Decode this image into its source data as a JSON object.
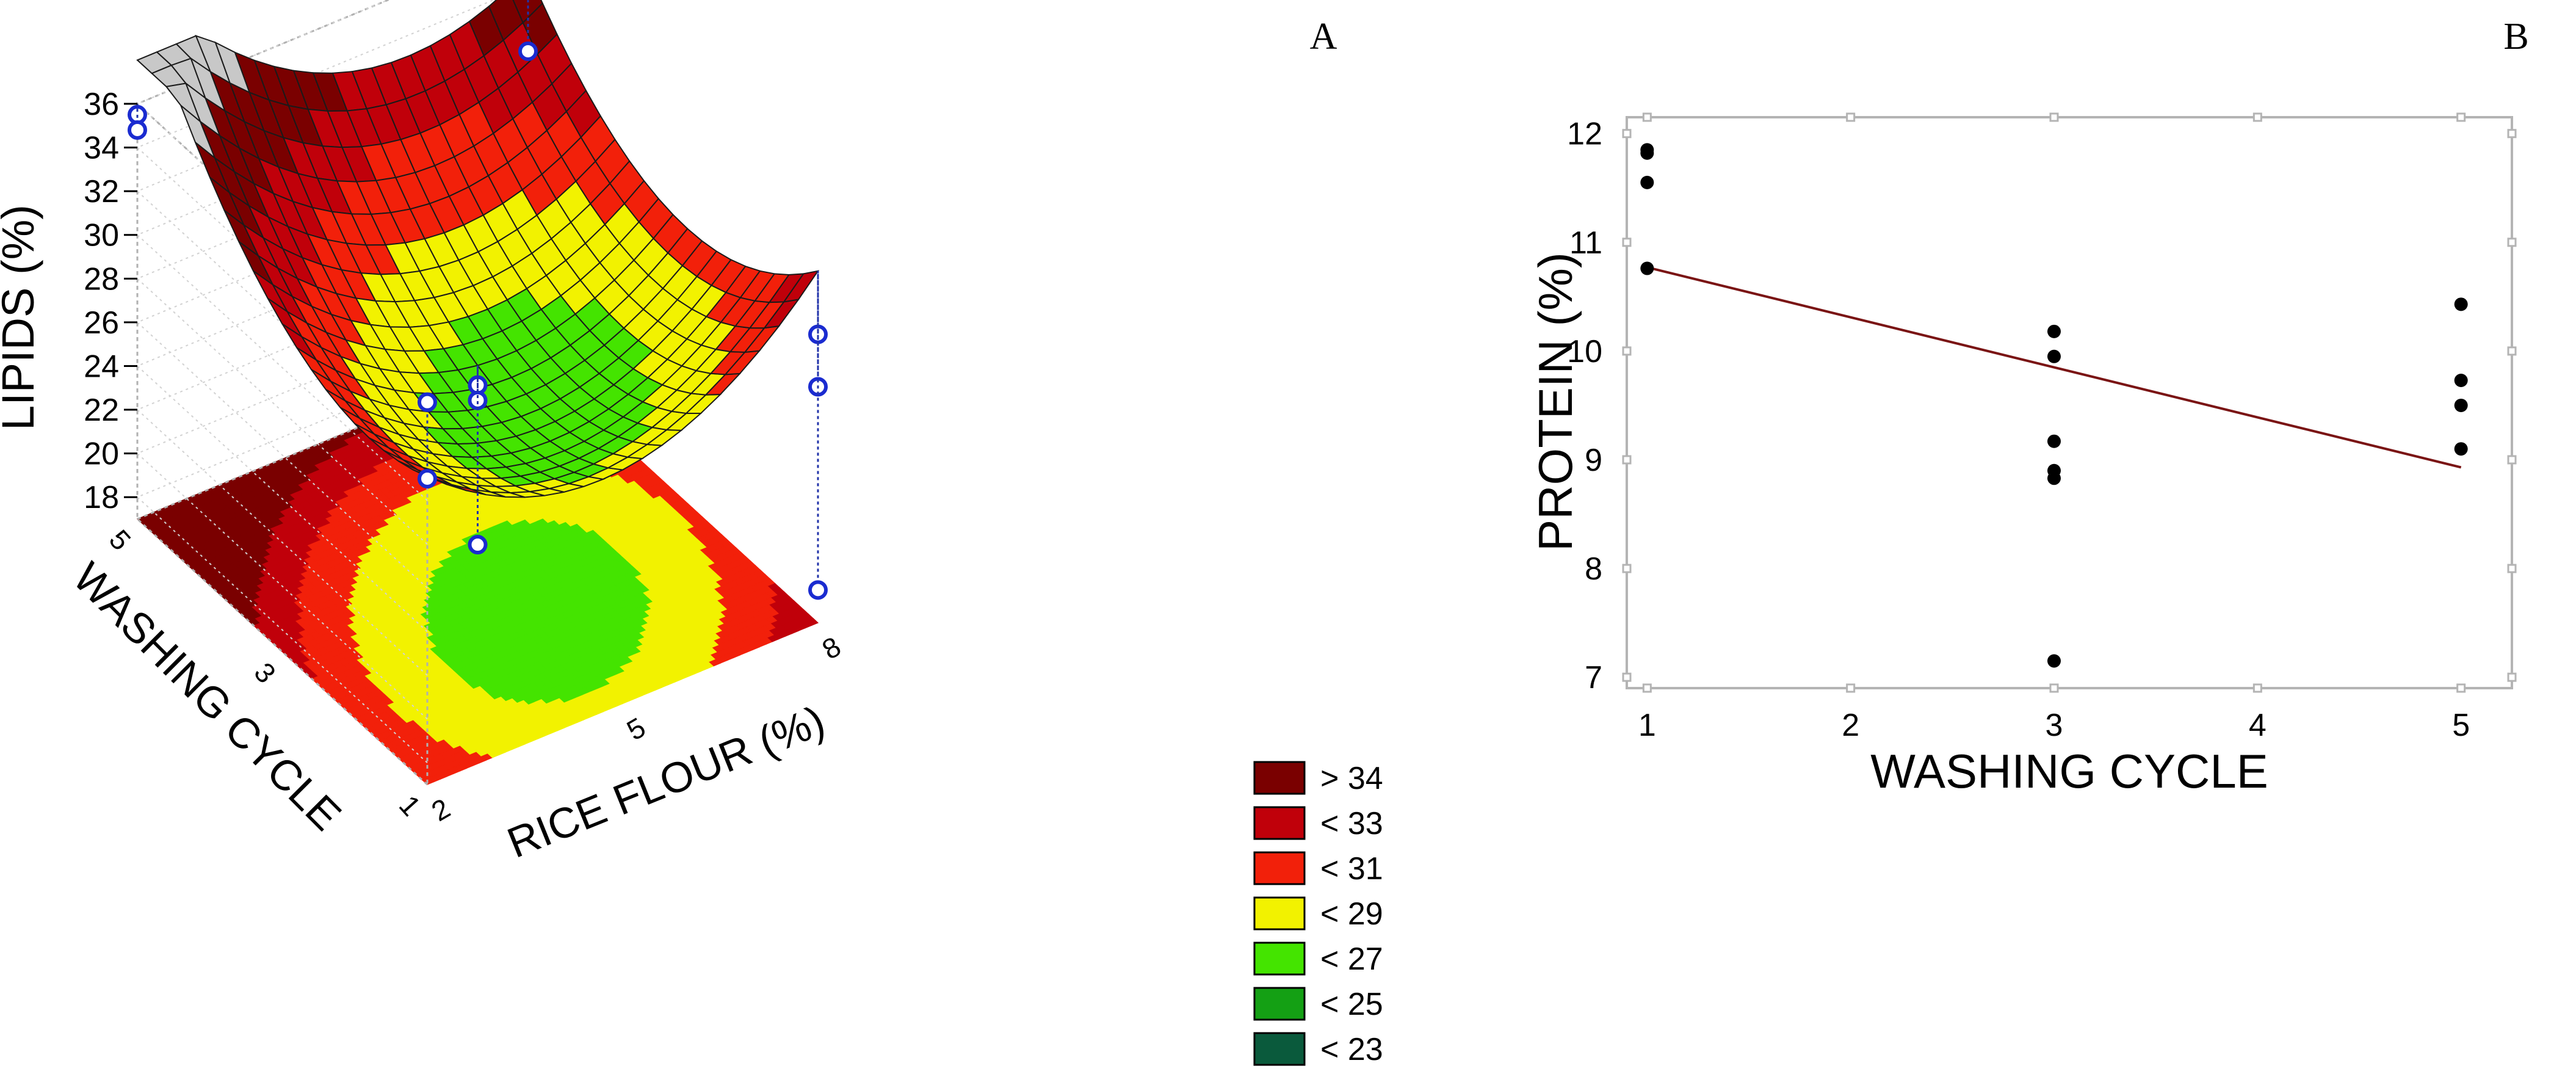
{
  "panels": {
    "a_label": "A",
    "b_label": "B"
  },
  "chart_data": [
    {
      "type": "surface3d",
      "panel": "A",
      "zlabel": "LIPIDS (%)",
      "ylabel": "WASHING CYCLE",
      "xlabel": "RICE FLOUR (%)",
      "zticks": [
        "18",
        "20",
        "22",
        "24",
        "26",
        "28",
        "30",
        "32",
        "34",
        "36"
      ],
      "zlim": [
        17,
        36
      ],
      "yticks": [
        "1",
        "3",
        "5"
      ],
      "ylim": [
        1,
        5
      ],
      "xticks": [
        "2",
        "5",
        "8"
      ],
      "xlim": [
        2,
        8
      ],
      "projection": "contour-on-floor",
      "legend_position": "right",
      "legend": [
        {
          "label": "> 34",
          "color": "#7a0000"
        },
        {
          "label": "< 33",
          "color": "#c0000a"
        },
        {
          "label": "< 31",
          "color": "#f2200a"
        },
        {
          "label": "< 29",
          "color": "#f2f200"
        },
        {
          "label": "< 27",
          "color": "#44e400"
        },
        {
          "label": "< 25",
          "color": "#14a014"
        },
        {
          "label": "< 23",
          "color": "#0a5a3c"
        }
      ],
      "overflow_color": "#c8c8c8",
      "observed_points": [
        {
          "rice": 2,
          "wash": 1,
          "lipids": 34.5
        },
        {
          "rice": 2,
          "wash": 1,
          "lipids": 31.0
        },
        {
          "rice": 2,
          "wash": 5,
          "lipids": 35.5
        },
        {
          "rice": 2,
          "wash": 5,
          "lipids": 34.8
        },
        {
          "rice": 8,
          "wash": 5,
          "lipids": 31.0
        },
        {
          "rice": 5,
          "wash": 3,
          "lipids": 25.5
        },
        {
          "rice": 5,
          "wash": 3,
          "lipids": 24.8
        },
        {
          "rice": 5,
          "wash": 3,
          "lipids": 18.2
        },
        {
          "rice": 8,
          "wash": 1,
          "lipids": 30.2
        },
        {
          "rice": 8,
          "wash": 1,
          "lipids": 27.8
        },
        {
          "rice": 8,
          "wash": 1,
          "lipids": 18.5
        }
      ]
    },
    {
      "type": "scatter",
      "panel": "B",
      "xlabel": "WASHING CYCLE",
      "ylabel": "PROTEIN (%)",
      "xlim": [
        0.9,
        5.25
      ],
      "ylim": [
        6.9,
        12.15
      ],
      "xticks": [
        1,
        2,
        3,
        4,
        5
      ],
      "yticks": [
        7,
        8,
        9,
        10,
        11,
        12
      ],
      "grid": false,
      "points": [
        {
          "x": 1,
          "y": 11.85
        },
        {
          "x": 1,
          "y": 11.82
        },
        {
          "x": 1,
          "y": 11.55
        },
        {
          "x": 1,
          "y": 10.76
        },
        {
          "x": 3,
          "y": 10.18
        },
        {
          "x": 3,
          "y": 9.95
        },
        {
          "x": 3,
          "y": 9.17
        },
        {
          "x": 3,
          "y": 8.9
        },
        {
          "x": 3,
          "y": 8.83
        },
        {
          "x": 3,
          "y": 7.15
        },
        {
          "x": 5,
          "y": 10.43
        },
        {
          "x": 5,
          "y": 9.73
        },
        {
          "x": 5,
          "y": 9.5
        },
        {
          "x": 5,
          "y": 9.1
        }
      ],
      "fit_line": {
        "x": [
          1,
          5
        ],
        "y": [
          10.77,
          8.93
        ],
        "color": "#7a1414"
      }
    }
  ]
}
